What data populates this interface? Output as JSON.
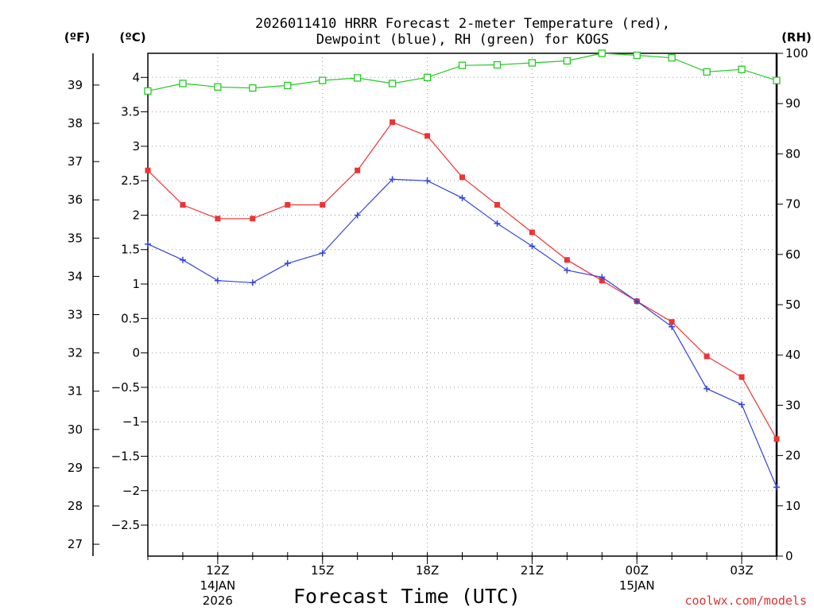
{
  "chart_data": {
    "type": "line",
    "title_line1": "2026011410 HRRR Forecast 2-meter Temperature (red),",
    "title_line2": "Dewpoint (blue), RH (green) for KOGS",
    "xlabel": "Forecast Time (UTC)",
    "credit": "coolwx.com/models",
    "unit_labels": {
      "fahrenheit": "(ºF)",
      "celsius": "(ºC)",
      "rh": "(RH)"
    },
    "x_hours": [
      10,
      11,
      12,
      13,
      14,
      15,
      16,
      17,
      18,
      19,
      20,
      21,
      22,
      23,
      24,
      25,
      26,
      27,
      28
    ],
    "x_ticks": [
      {
        "hour": 12,
        "label": "12Z",
        "sub1": "14JAN",
        "sub2": "2026"
      },
      {
        "hour": 15,
        "label": "15Z"
      },
      {
        "hour": 18,
        "label": "18Z"
      },
      {
        "hour": 21,
        "label": "21Z"
      },
      {
        "hour": 24,
        "label": "00Z",
        "sub1": "15JAN"
      },
      {
        "hour": 27,
        "label": "03Z"
      }
    ],
    "celsius_ylim": [
      -2.95,
      4.35
    ],
    "celsius_ticks": [
      "-2.5",
      "-2",
      "-1.5",
      "-1",
      "-0.5",
      "0",
      "0.5",
      "1",
      "1.5",
      "2",
      "2.5",
      "3",
      "3.5",
      "4"
    ],
    "fahrenheit_ticks": [
      "27",
      "28",
      "29",
      "30",
      "31",
      "32",
      "33",
      "34",
      "35",
      "36",
      "37",
      "38",
      "39"
    ],
    "rh_ylim": [
      0,
      100
    ],
    "rh_ticks": [
      "0",
      "10",
      "20",
      "30",
      "40",
      "50",
      "60",
      "70",
      "80",
      "90",
      "100"
    ],
    "series": [
      {
        "name": "Temperature",
        "unit": "C",
        "color": "#ee3333",
        "values": [
          2.65,
          2.15,
          1.95,
          1.95,
          2.15,
          2.15,
          2.65,
          3.35,
          3.15,
          2.55,
          2.15,
          1.75,
          1.35,
          1.05,
          0.75,
          0.45,
          -0.05,
          -0.35,
          -1.25
        ]
      },
      {
        "name": "Dewpoint",
        "unit": "C",
        "color": "#3344dd",
        "values": [
          1.58,
          1.35,
          1.05,
          1.02,
          1.3,
          1.45,
          2.0,
          2.52,
          2.5,
          2.25,
          1.88,
          1.55,
          1.2,
          1.1,
          0.75,
          0.38,
          -0.52,
          -0.75,
          -1.95
        ]
      },
      {
        "name": "RH",
        "unit": "%",
        "color": "#22cc22",
        "values": [
          92.5,
          94,
          93.3,
          93.1,
          93.6,
          94.6,
          95.1,
          94,
          95.2,
          97.6,
          97.7,
          98.1,
          98.5,
          100,
          99.6,
          99.1,
          96.3,
          96.8,
          94.6
        ]
      }
    ]
  }
}
